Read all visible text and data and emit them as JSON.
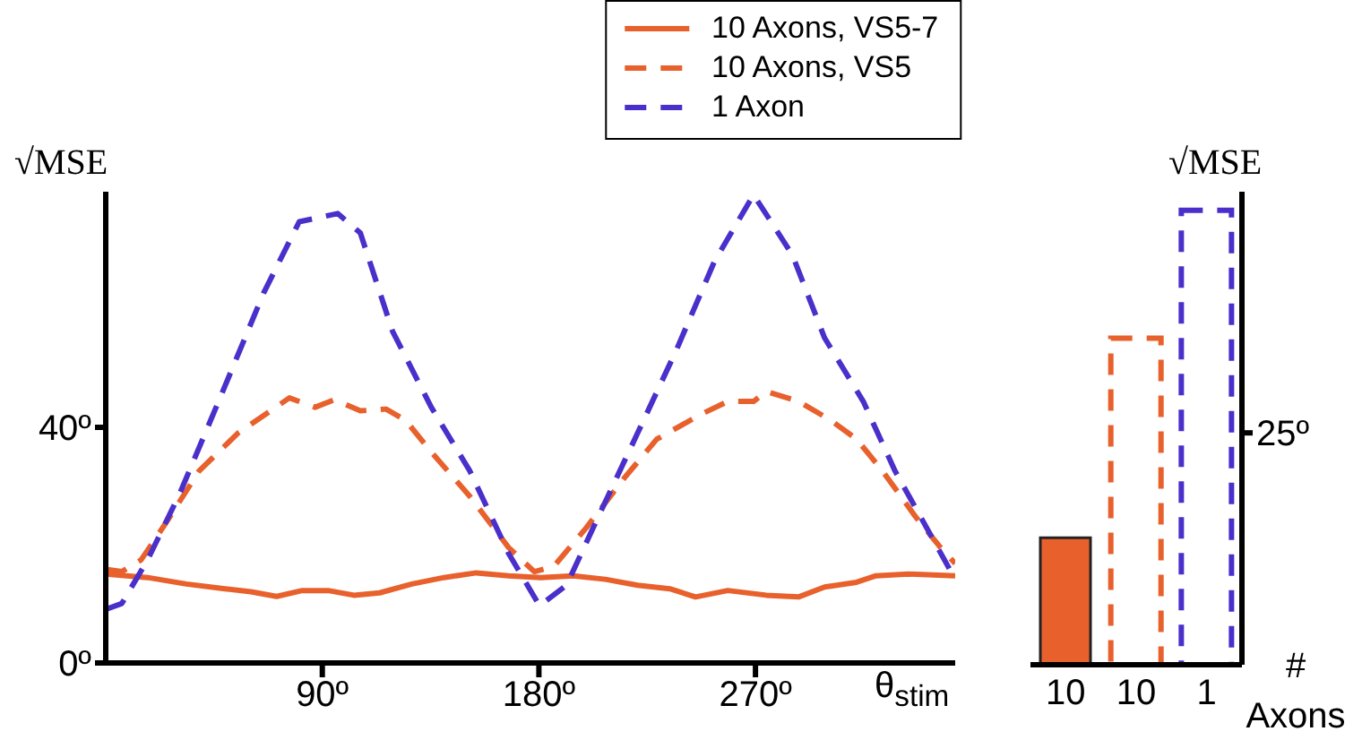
{
  "chart_data": [
    {
      "type": "line",
      "ylabel": "√MSE",
      "xlabel": "θ$_{stim}$",
      "xlim": [
        0,
        353
      ],
      "ylim": [
        0,
        80
      ],
      "xticks": [
        {
          "value": 90,
          "label": "90º"
        },
        {
          "value": 180,
          "label": "180º"
        },
        {
          "value": 270,
          "label": "270º"
        }
      ],
      "yticks": [
        {
          "value": 0,
          "label": "0º"
        },
        {
          "value": 40,
          "label": "40º"
        }
      ],
      "legend": "top right",
      "grid": false,
      "series": [
        {
          "name": "10 Axons, VS5-7",
          "color": "#e8602c",
          "line_style": "solid",
          "x": [
            0,
            17.4,
            33.5,
            49.6,
            60.3,
            71,
            81.7,
            92.4,
            103.1,
            113.8,
            127.2,
            140.6,
            154,
            167.4,
            180.8,
            194.2,
            207.6,
            221,
            234.4,
            245.1,
            258.5,
            274.5,
            287.9,
            298.7,
            312,
            320.1,
            333.5,
            353
          ],
          "values": [
            15.1,
            14.5,
            13.4,
            12.6,
            12.1,
            11.3,
            12.3,
            12.3,
            11.5,
            11.9,
            13.4,
            14.5,
            15.3,
            14.8,
            14.5,
            14.8,
            14.2,
            13.2,
            12.6,
            11.2,
            12.3,
            11.5,
            11.2,
            12.9,
            13.7,
            14.8,
            15.1,
            14.8
          ]
        },
        {
          "name": "10 Axons, VS5",
          "color": "#e8602c",
          "line_style": "dashed",
          "x": [
            0,
            6.7,
            14.7,
            25.4,
            38.8,
            54.9,
            76.3,
            87,
            95.1,
            105.8,
            116.5,
            124.6,
            135.3,
            151.3,
            167.4,
            178.1,
            186.2,
            199.6,
            215.7,
            229,
            247.8,
            258.5,
            269.2,
            274.5,
            287.9,
            301.3,
            312,
            322.8,
            336.2,
            346.9,
            353
          ],
          "values": [
            15.9,
            15.5,
            17.5,
            24,
            32.6,
            39,
            45,
            43.4,
            44.7,
            42.8,
            43.1,
            41.2,
            35.8,
            28.3,
            19.6,
            15.5,
            16.4,
            22.9,
            31.5,
            38,
            42.3,
            44.4,
            44.4,
            46.1,
            44.4,
            41.2,
            38,
            32.6,
            25,
            19.6,
            16.9
          ]
        },
        {
          "name": "1 Axon",
          "color": "#4b2fcb",
          "line_style": "dashed",
          "x": [
            0,
            6.7,
            17.4,
            30.8,
            46.9,
            65.6,
            80.4,
            96.4,
            105.8,
            119.2,
            135.3,
            151.3,
            167.4,
            180.3,
            191.5,
            204.9,
            221,
            237,
            253,
            269.2,
            285.3,
            298.7,
            314.8,
            328,
            344.2,
            353
          ],
          "values": [
            9.1,
            10.1,
            17.5,
            28.8,
            44.4,
            62.8,
            74.9,
            76.3,
            73,
            56.3,
            43.4,
            32.6,
            18.6,
            9.7,
            13.2,
            25,
            39,
            53,
            68.2,
            79.5,
            69.3,
            55.2,
            44.4,
            32.6,
            20.7,
            14.2
          ]
        }
      ]
    },
    {
      "type": "bar",
      "stacked": true,
      "ylabel": "√MSE",
      "xlabel": "# Axons",
      "categories": [
        "10",
        "10",
        "1"
      ],
      "ylim": [
        0,
        51
      ],
      "yticks": [
        {
          "value": 25,
          "label": "25º"
        }
      ],
      "grid": false,
      "series": [
        {
          "color": "#e8602c",
          "line_style": "solid",
          "values": [
            13.7,
            null,
            null
          ]
        },
        {
          "color": "#e8602c",
          "line_style": "dashed",
          "values": [
            null,
            35.2,
            null
          ]
        },
        {
          "color": "#4b2fcb",
          "line_style": "dashed",
          "values": [
            null,
            null,
            49
          ]
        }
      ]
    }
  ]
}
